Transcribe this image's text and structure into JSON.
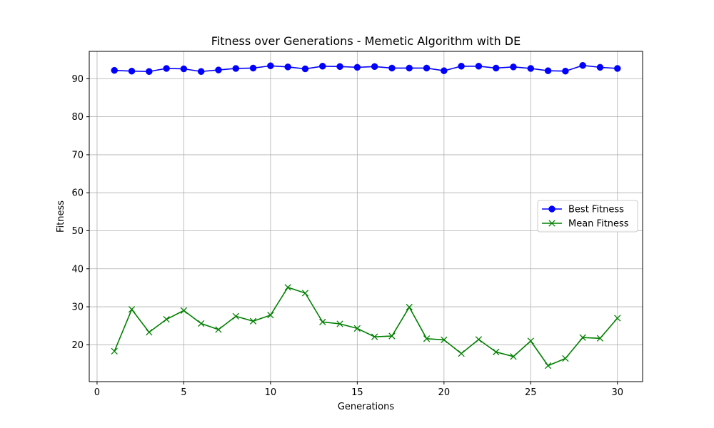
{
  "chart_data": {
    "type": "line",
    "title": "Fitness over Generations - Memetic Algorithm with DE",
    "xlabel": "Generations",
    "ylabel": "Fitness",
    "x": [
      1,
      2,
      3,
      4,
      5,
      6,
      7,
      8,
      9,
      10,
      11,
      12,
      13,
      14,
      15,
      16,
      17,
      18,
      19,
      20,
      21,
      22,
      23,
      24,
      25,
      26,
      27,
      28,
      29,
      30
    ],
    "xlim": [
      -0.45,
      31.45
    ],
    "ylim": [
      10.3,
      97.2
    ],
    "xticks": [
      0,
      5,
      10,
      15,
      20,
      25,
      30
    ],
    "yticks": [
      20,
      30,
      40,
      50,
      60,
      70,
      80,
      90
    ],
    "grid": true,
    "legend_position": "center-right",
    "series": [
      {
        "name": "Best Fitness",
        "color": "#0000ff",
        "marker": "circle",
        "values": [
          92.2,
          92.0,
          91.9,
          92.7,
          92.6,
          91.9,
          92.3,
          92.7,
          92.8,
          93.4,
          93.1,
          92.6,
          93.3,
          93.2,
          93.0,
          93.2,
          92.8,
          92.8,
          92.8,
          92.1,
          93.3,
          93.3,
          92.8,
          93.1,
          92.7,
          92.1,
          92.0,
          93.5,
          93.0,
          92.7
        ]
      },
      {
        "name": "Mean Fitness",
        "color": "#008000",
        "marker": "x",
        "values": [
          18.3,
          29.3,
          23.3,
          26.7,
          29.0,
          25.6,
          24.0,
          27.5,
          26.2,
          27.8,
          35.1,
          33.6,
          26.0,
          25.5,
          24.3,
          22.1,
          22.3,
          29.9,
          21.6,
          21.3,
          17.7,
          21.4,
          18.1,
          16.9,
          21.0,
          14.5,
          16.4,
          21.9,
          21.7,
          27.0
        ]
      }
    ]
  }
}
